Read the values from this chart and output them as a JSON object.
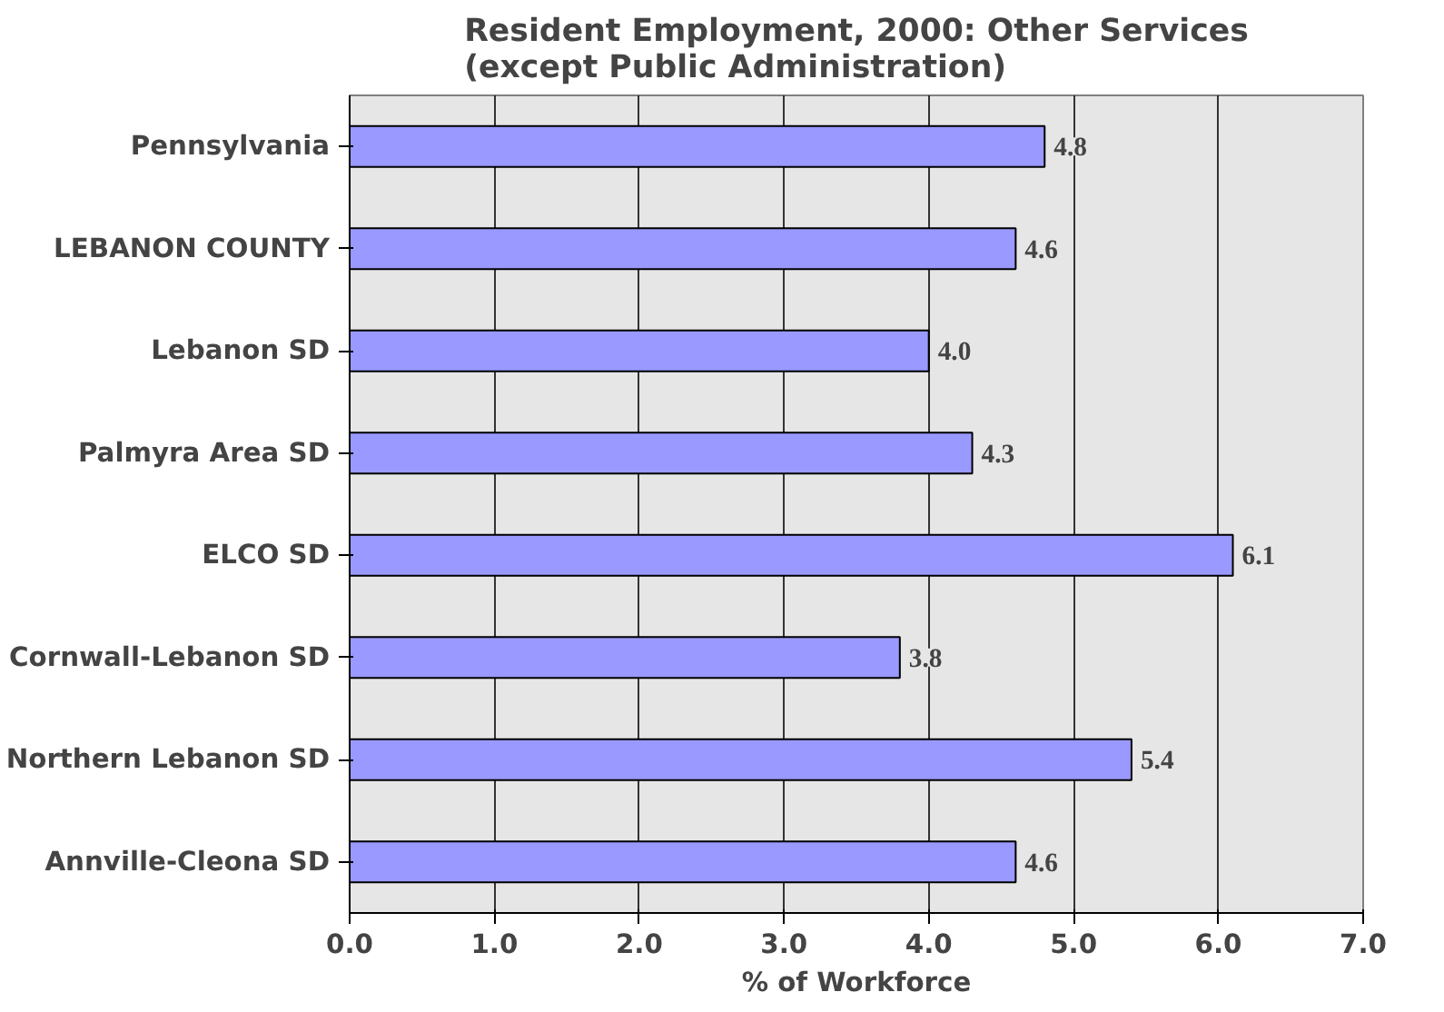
{
  "chart_data": {
    "type": "bar",
    "orientation": "horizontal",
    "title": "Resident Employment, 2000: Other Services\n(except Public Administration)",
    "xlabel": "% of Workforce",
    "categories": [
      "Pennsylvania",
      "LEBANON COUNTY",
      "Lebanon SD",
      "Palmyra Area SD",
      "ELCO SD",
      "Cornwall-Lebanon SD",
      "Northern Lebanon SD",
      "Annville-Cleona SD"
    ],
    "values": [
      4.8,
      4.6,
      4.0,
      4.3,
      6.1,
      3.8,
      5.4,
      4.6
    ],
    "value_labels": [
      "4.8",
      "4.6",
      "4.0",
      "4.3",
      "6.1",
      "3.8",
      "5.4",
      "4.6"
    ],
    "color": "#9999ff",
    "xlim": [
      0,
      7
    ],
    "xticks": [
      {
        "value": 0,
        "label": "0.0"
      },
      {
        "value": 1,
        "label": "1.0"
      },
      {
        "value": 2,
        "label": "2.0"
      },
      {
        "value": 3,
        "label": "3.0"
      },
      {
        "value": 4,
        "label": "4.0"
      },
      {
        "value": 5,
        "label": "5.0"
      },
      {
        "value": 6,
        "label": "6.0"
      },
      {
        "value": 7,
        "label": "7.0"
      }
    ],
    "grid": "x"
  }
}
